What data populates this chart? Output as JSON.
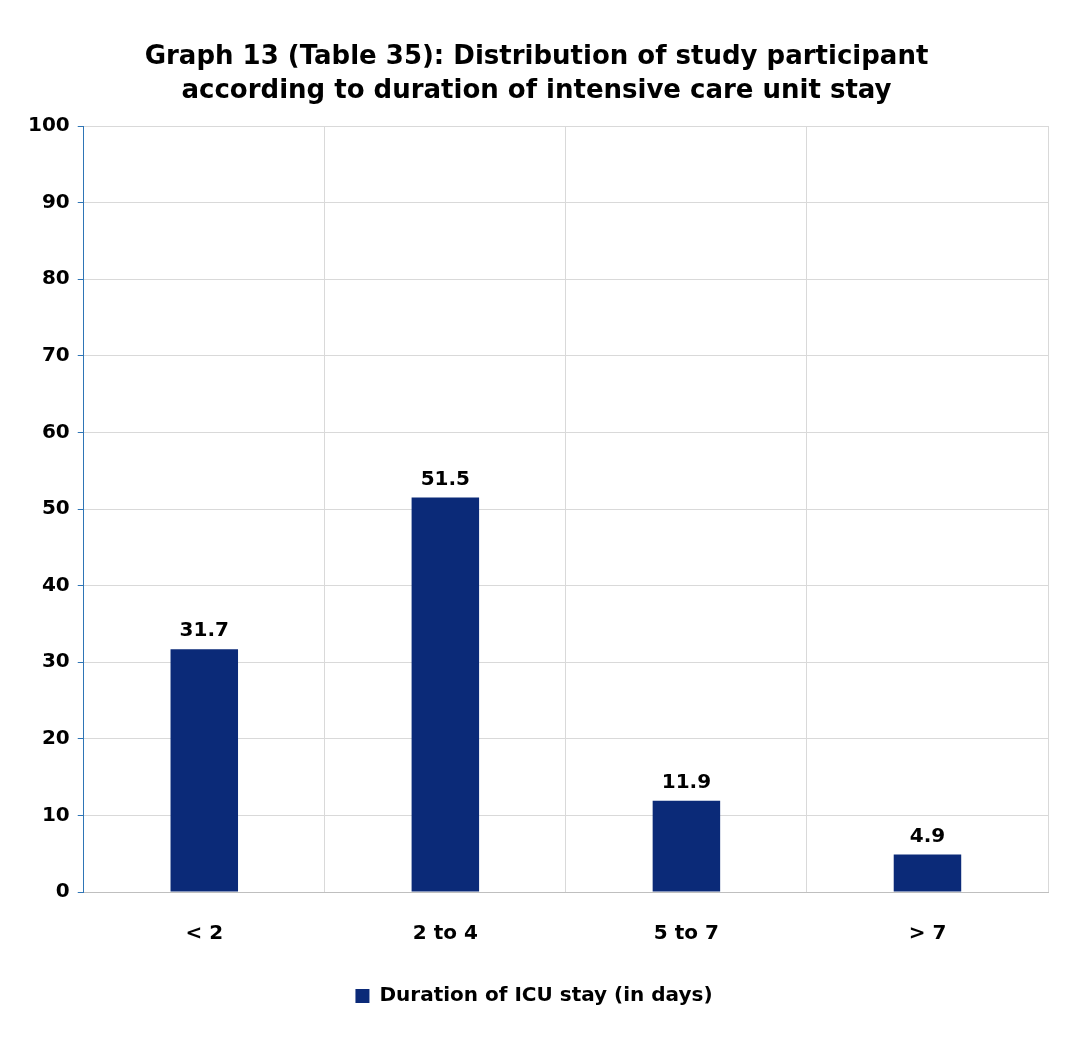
{
  "chart_data": {
    "type": "bar",
    "title": "Graph 13 (Table 35): Distribution of study participant according to duration of intensive care unit stay",
    "categories": [
      "< 2",
      "2 to 4",
      "5 to 7",
      "> 7"
    ],
    "series": [
      {
        "name": "Duration of ICU stay (in days)",
        "color": "#0b2a78",
        "values": [
          31.7,
          51.5,
          11.9,
          4.9
        ]
      }
    ],
    "ylim": [
      0,
      100
    ],
    "yticks": [
      0,
      10,
      20,
      30,
      40,
      50,
      60,
      70,
      80,
      90,
      100
    ],
    "grid": true,
    "legend": "bottom",
    "data_labels": true
  }
}
